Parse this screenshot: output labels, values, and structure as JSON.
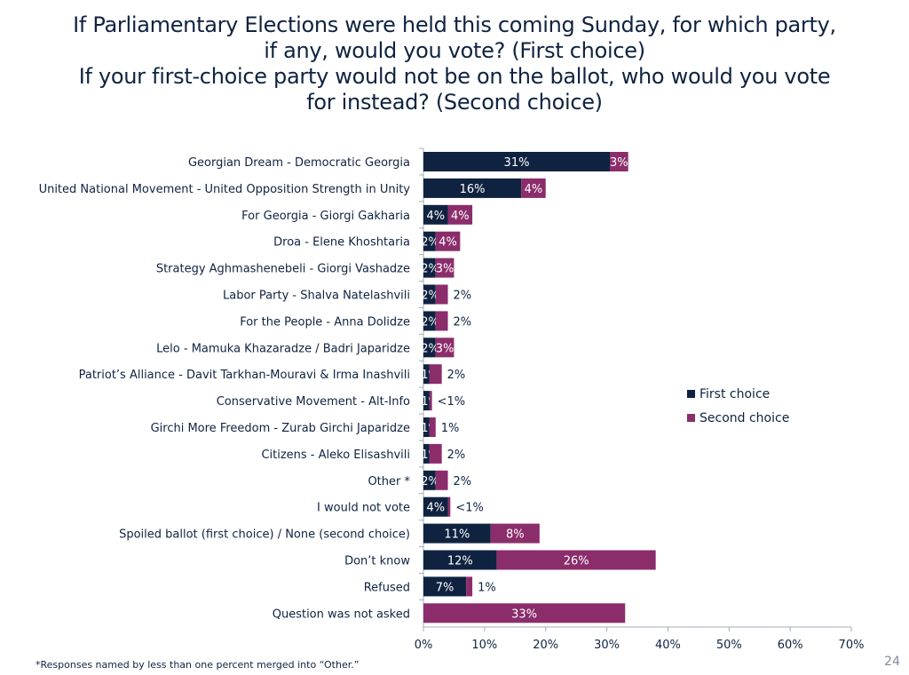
{
  "title": {
    "lines": [
      "If Parliamentary Elections were held this coming Sunday, for which party,",
      "if any, would you vote? (First choice)",
      "If your first-choice party would not be on the ballot, who would you vote",
      "for instead? (Second choice)"
    ]
  },
  "colors": {
    "first_choice": "#0f2340",
    "second_choice": "#8b2d6b",
    "axis": "#a6aeb8",
    "text": "#0f2340"
  },
  "legend": {
    "items": [
      {
        "label": "First choice",
        "color": "#0f2340"
      },
      {
        "label": "Second choice",
        "color": "#8b2d6b"
      }
    ]
  },
  "footnote": "*Responses named by less than one percent merged into “Other.”",
  "page_number": "24",
  "chart_data": {
    "type": "bar",
    "orientation": "horizontal",
    "stacked": true,
    "title": "If Parliamentary Elections were held this coming Sunday, for which party, if any, would you vote? (First choice) If your first-choice party would not be on the ballot, who would you vote for instead? (Second choice)",
    "xlabel": "",
    "ylabel": "",
    "xlim": [
      0,
      70
    ],
    "x_ticks": [
      "0%",
      "10%",
      "20%",
      "30%",
      "40%",
      "50%",
      "60%",
      "70%"
    ],
    "x_tick_values": [
      0,
      10,
      20,
      30,
      40,
      50,
      60,
      70
    ],
    "grid": false,
    "legend_position": "right",
    "categories": [
      "Georgian Dream - Democratic Georgia",
      "United National Movement - United Opposition Strength in Unity",
      "For Georgia - Giorgi Gakharia",
      "Droa - Elene Khoshtaria",
      "Strategy Aghmashenebeli - Giorgi Vashadze",
      "Labor Party - Shalva Natelashvili",
      "For the People - Anna Dolidze",
      "Lelo - Mamuka Khazaradze / Badri Japaridze",
      "Patriot’s Alliance - Davit Tarkhan-Mouravi & Irma Inashvili",
      "Conservative Movement - Alt-Info",
      "Girchi More Freedom - Zurab Girchi Japaridze",
      "Citizens - Aleko Elisashvili",
      "Other *",
      "I would not vote",
      "Spoiled ballot (first choice) / None (second choice)",
      "Don’t know",
      "Refused",
      "Question was not asked"
    ],
    "series": [
      {
        "name": "First choice",
        "color": "#0f2340",
        "values": [
          30.5,
          16,
          4,
          2,
          2,
          2,
          2,
          2,
          1,
          1,
          1,
          1,
          2,
          4,
          11,
          12,
          7,
          0
        ],
        "labels": [
          "31%",
          "16%",
          "4%",
          "2%",
          "2%",
          "2%",
          "2%",
          "2%",
          "1%",
          "1%",
          "1%",
          "1%",
          "2%",
          "4%",
          "11%",
          "12%",
          "7%",
          ""
        ]
      },
      {
        "name": "Second choice",
        "color": "#8b2d6b",
        "values": [
          3,
          4,
          4,
          4,
          3,
          2,
          2,
          3,
          2,
          0.4,
          1,
          2,
          2,
          0.4,
          8,
          26,
          1,
          33
        ],
        "labels": [
          "3%",
          "4%",
          "4%",
          "4%",
          "3%",
          "2%",
          "2%",
          "3%",
          "2%",
          "<1%",
          "1%",
          "2%",
          "2%",
          "<1%",
          "8%",
          "26%",
          "1%",
          "33%"
        ]
      }
    ]
  }
}
